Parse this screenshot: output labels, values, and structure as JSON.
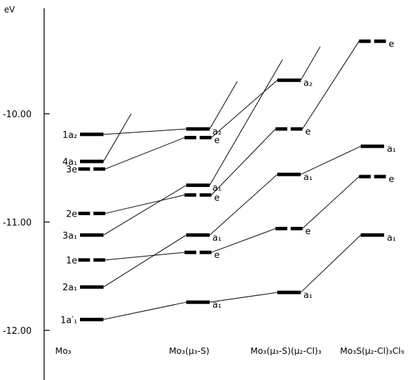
{
  "unit": "eV",
  "y_ticks": [
    {
      "value": -10.0,
      "label": "-10.00"
    },
    {
      "value": -11.0,
      "label": "-11.00"
    },
    {
      "value": -12.0,
      "label": "-12.00"
    }
  ],
  "columns": [
    {
      "key": "c1",
      "label": "Mo₃"
    },
    {
      "key": "c2",
      "label": "Mo₃(μ₃-S)"
    },
    {
      "key": "c3",
      "label": "Mo₃(μ₃-S)(μ₂-Cl)₃"
    },
    {
      "key": "c4",
      "label": "Mo₃S(μ₂-Cl)₃Cl₉"
    }
  ],
  "levels": [
    {
      "id": "c1-1a2",
      "col": "c1",
      "energy": -10.19,
      "label": "1a₂",
      "type": "a"
    },
    {
      "id": "c1-4a1",
      "col": "c1",
      "energy": -10.44,
      "label": "4a₁",
      "type": "a"
    },
    {
      "id": "c1-3e",
      "col": "c1",
      "energy": -10.51,
      "label": "3e",
      "type": "e"
    },
    {
      "id": "c1-2e",
      "col": "c1",
      "energy": -10.92,
      "label": "2e",
      "type": "e"
    },
    {
      "id": "c1-3a1",
      "col": "c1",
      "energy": -11.12,
      "label": "3a₁",
      "type": "a"
    },
    {
      "id": "c1-1e",
      "col": "c1",
      "energy": -11.35,
      "label": "1e",
      "type": "e"
    },
    {
      "id": "c1-2a1",
      "col": "c1",
      "energy": -11.6,
      "label": "2a₁",
      "type": "a"
    },
    {
      "id": "c1-1a1p",
      "col": "c1",
      "energy": -11.9,
      "label": "1a′₁",
      "type": "a"
    },
    {
      "id": "c2-a2",
      "col": "c2",
      "energy": -10.14,
      "label": "a₂",
      "type": "a"
    },
    {
      "id": "c2-e-top",
      "col": "c2",
      "energy": -10.22,
      "label": "e",
      "type": "e"
    },
    {
      "id": "c2-a1-mid",
      "col": "c2",
      "energy": -10.66,
      "label": "a₁",
      "type": "a"
    },
    {
      "id": "c2-e-mid",
      "col": "c2",
      "energy": -10.75,
      "label": "e",
      "type": "e"
    },
    {
      "id": "c2-a1-low",
      "col": "c2",
      "energy": -11.12,
      "label": "a₁",
      "type": "a"
    },
    {
      "id": "c2-e-low",
      "col": "c2",
      "energy": -11.28,
      "label": "e",
      "type": "e"
    },
    {
      "id": "c2-a1-bot",
      "col": "c2",
      "energy": -11.74,
      "label": "a₁",
      "type": "a"
    },
    {
      "id": "c3-a2",
      "col": "c3",
      "energy": -9.69,
      "label": "a₂",
      "type": "a"
    },
    {
      "id": "c3-e-top",
      "col": "c3",
      "energy": -10.14,
      "label": "e",
      "type": "e"
    },
    {
      "id": "c3-a1-mid",
      "col": "c3",
      "energy": -10.56,
      "label": "a₁",
      "type": "a"
    },
    {
      "id": "c3-e-low",
      "col": "c3",
      "energy": -11.06,
      "label": "e",
      "type": "e"
    },
    {
      "id": "c3-a1-bot",
      "col": "c3",
      "energy": -11.65,
      "label": "a₁",
      "type": "a"
    },
    {
      "id": "c4-e-top",
      "col": "c4",
      "energy": -9.33,
      "label": "e",
      "type": "e"
    },
    {
      "id": "c4-a1-top",
      "col": "c4",
      "energy": -10.3,
      "label": "a₁",
      "type": "a"
    },
    {
      "id": "c4-e-low",
      "col": "c4",
      "energy": -10.58,
      "label": "e",
      "type": "e"
    },
    {
      "id": "c4-a1-bot",
      "col": "c4",
      "energy": -11.12,
      "label": "a₁",
      "type": "a"
    }
  ],
  "connections": [
    {
      "from": "c1-1a2",
      "to": "c2-a2"
    },
    {
      "from": "c1-3e",
      "to": "c2-e-top"
    },
    {
      "from": "c1-2e",
      "to": "c2-e-mid"
    },
    {
      "from": "c1-3a1",
      "to": "c2-a1-mid"
    },
    {
      "from": "c1-1e",
      "to": "c2-e-low"
    },
    {
      "from": "c1-2a1",
      "to": "c2-a1-low"
    },
    {
      "from": "c1-1a1p",
      "to": "c2-a1-bot"
    },
    {
      "from": "c2-e-top",
      "to": "c3-a2"
    },
    {
      "from": "c2-e-mid",
      "to": "c3-e-top"
    },
    {
      "from": "c2-a1-low",
      "to": "c3-a1-mid"
    },
    {
      "from": "c2-e-low",
      "to": "c3-e-low"
    },
    {
      "from": "c2-a1-bot",
      "to": "c3-a1-bot"
    },
    {
      "from": "c3-e-top",
      "to": "c4-e-top"
    },
    {
      "from": "c3-a1-mid",
      "to": "c4-a1-top"
    },
    {
      "from": "c3-e-low",
      "to": "c4-e-low"
    },
    {
      "from": "c3-a1-bot",
      "to": "c4-a1-bot"
    }
  ],
  "open_ended_lines": [
    {
      "from": "c1-4a1",
      "to_energy": -10.0
    },
    {
      "from": "c2-a2",
      "to_energy": -9.7
    },
    {
      "from": "c2-a1-mid",
      "to_energy": -9.5
    },
    {
      "from": "c3-a2",
      "to_energy": -9.38
    }
  ]
}
